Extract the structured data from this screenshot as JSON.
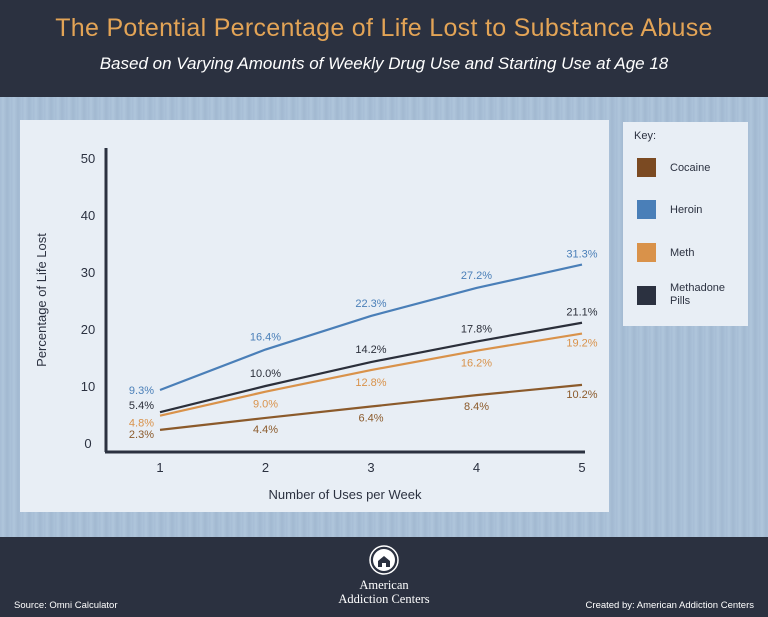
{
  "header": {
    "title": "The Potential Percentage of Life Lost to Substance Abuse",
    "subtitle": "Based on Varying Amounts of Weekly Drug Use and Starting Use at Age 18"
  },
  "chart_data": {
    "type": "line",
    "xlabel": "Number of Uses per Week",
    "ylabel": "Percentage of Life Lost",
    "x": [
      1,
      2,
      3,
      4,
      5
    ],
    "x_tick_labels": [
      "1",
      "2",
      "3",
      "4",
      "5"
    ],
    "y_tick_labels": [
      "0",
      "10",
      "20",
      "30",
      "40",
      "50"
    ],
    "ylim": [
      0,
      50
    ],
    "grid": false,
    "legend_placement": "right",
    "series": [
      {
        "name": "Cocaine",
        "color": "#8b5a2b",
        "values": [
          2.3,
          4.4,
          6.4,
          8.4,
          10.2
        ],
        "labels": [
          "2.3%",
          "4.4%",
          "6.4%",
          "8.4%",
          "10.2%"
        ]
      },
      {
        "name": "Heroin",
        "color": "#4a7fb8",
        "values": [
          9.3,
          16.4,
          22.3,
          27.2,
          31.3
        ],
        "labels": [
          "9.3%",
          "16.4%",
          "22.3%",
          "27.2%",
          "31.3%"
        ]
      },
      {
        "name": "Meth",
        "color": "#d9924a",
        "values": [
          4.8,
          9.0,
          12.8,
          16.2,
          19.2
        ],
        "labels": [
          "4.8%",
          "9.0%",
          "12.8%",
          "16.2%",
          "19.2%"
        ]
      },
      {
        "name": "Methadone Pills",
        "color": "#2b2f3a",
        "values": [
          5.4,
          10.0,
          14.2,
          17.8,
          21.1
        ],
        "labels": [
          "5.4%",
          "10.0%",
          "14.2%",
          "17.8%",
          "21.1%"
        ]
      }
    ]
  },
  "key": {
    "title": "Key:",
    "items": [
      {
        "label": "Cocaine",
        "color": "#7b4a22"
      },
      {
        "label": "Heroin",
        "color": "#4a7fb8"
      },
      {
        "label": "Meth",
        "color": "#d9924a"
      },
      {
        "label": "Methadone Pills",
        "color": "#2b3140"
      }
    ]
  },
  "footer": {
    "source": "Source: Omni Calculator",
    "credit": "Created by: American Addiction Centers",
    "logo_line1": "American",
    "logo_line2": "Addiction Centers"
  }
}
